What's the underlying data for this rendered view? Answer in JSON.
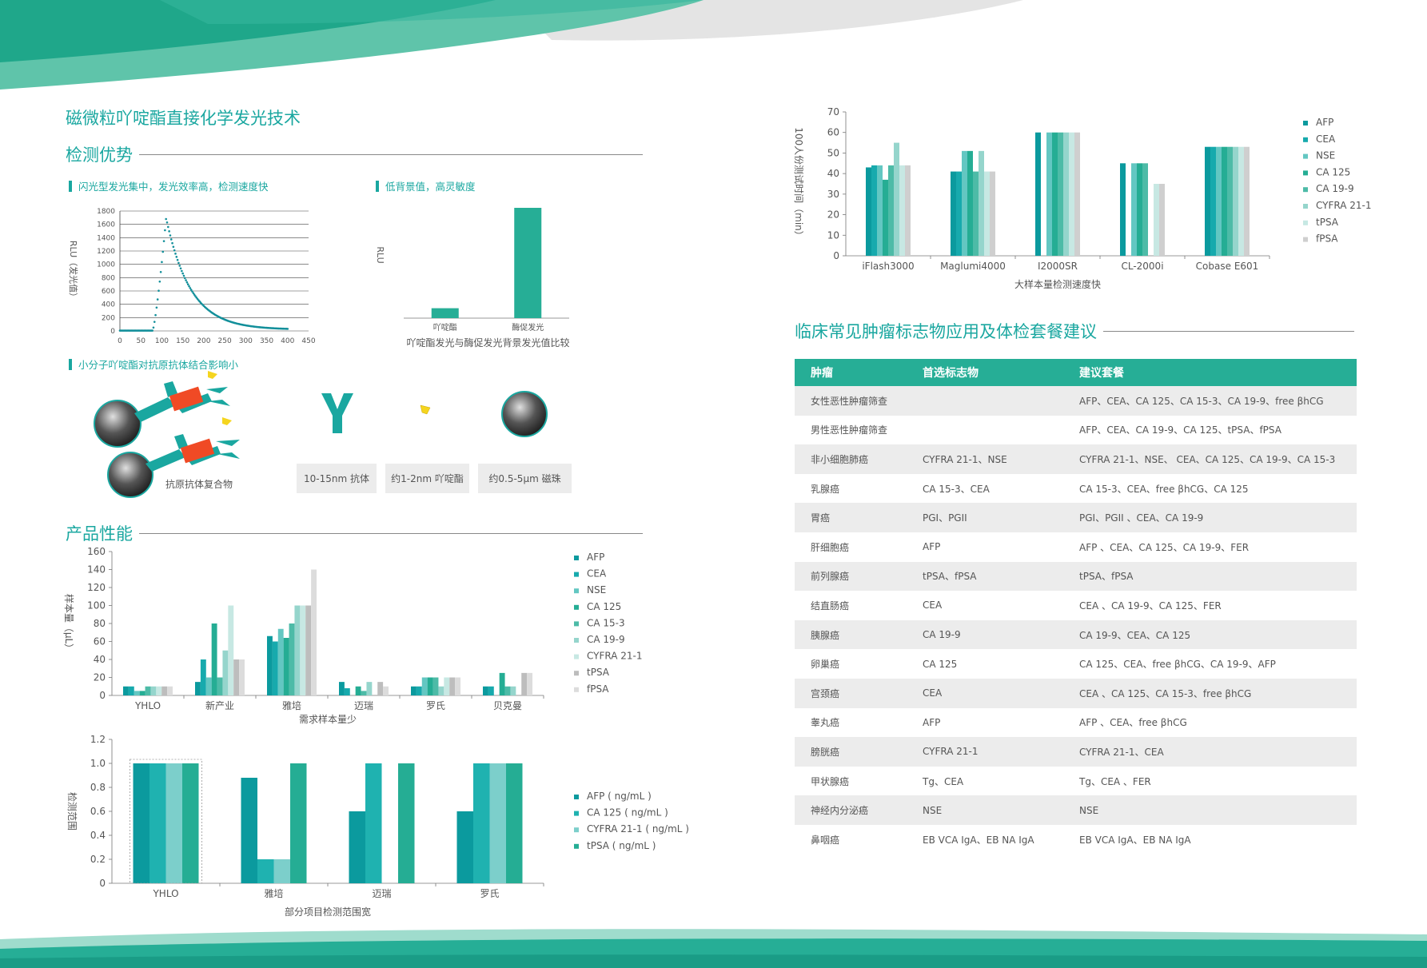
{
  "main_title": "磁微粒吖啶酯直接化学发光技术",
  "section_advantages": "检测优势",
  "sub_flash": "闪光型发光集中，发光效率高，检测速度快",
  "sub_background": "低背景值，高灵敏度",
  "sub_small": "小分子吖啶酯对抗原抗体结合影响小",
  "complex_label": "抗原抗体复合物",
  "info_boxes": [
    "10-15nm 抗体",
    "约1-2nm 吖啶酯",
    "约0.5-5μm 磁珠"
  ],
  "section_performance": "产品性能",
  "section_clinical": "临床常见肿瘤标志物应用及体检套餐建议",
  "colors": {
    "accent": "#1aa7a0",
    "header": "#26ae96"
  },
  "chart_data": [
    {
      "id": "flash",
      "type": "line",
      "title": "",
      "xlabel": "",
      "ylabel": "RLU（发光值）",
      "xlim": [
        0,
        450
      ],
      "ylim": [
        0,
        1800
      ],
      "xticks": [
        "0",
        "50",
        "100",
        "150",
        "200",
        "250",
        "300",
        "350",
        "400",
        "450"
      ],
      "yticks": [
        "0",
        "200",
        "400",
        "600",
        "800",
        "1000",
        "1200",
        "1400",
        "1600",
        "1800"
      ],
      "peak_x": 110,
      "peak_y": 1680,
      "onset_x": 78
    },
    {
      "id": "background",
      "type": "bar",
      "title": "",
      "xlabel": "吖啶酯发光与酶促发光背景发光值比较",
      "ylabel": "RLU",
      "categories": [
        "吖啶酯",
        "酶促发光"
      ],
      "values": [
        9,
        100
      ],
      "ylim": [
        0,
        100
      ]
    },
    {
      "id": "sample",
      "type": "bar",
      "title": "",
      "xlabel": "需求样本量少",
      "ylabel": "样本量（μL）",
      "ylim": [
        0,
        160
      ],
      "yticks": [
        "0",
        "20",
        "40",
        "60",
        "80",
        "100",
        "120",
        "140",
        "160"
      ],
      "categories": [
        "YHLO",
        "新产业",
        "雅培",
        "迈瑞",
        "罗氏",
        "贝克曼"
      ],
      "series": [
        {
          "name": "AFP",
          "color": "#0b9a9e",
          "values": [
            10,
            15,
            66,
            15,
            10,
            10
          ]
        },
        {
          "name": "CEA",
          "color": "#17aaad",
          "values": [
            10,
            40,
            60,
            8,
            10,
            10
          ]
        },
        {
          "name": "NSE",
          "color": "#63c7c2",
          "values": [
            5,
            20,
            74,
            0,
            20,
            0
          ]
        },
        {
          "name": "CA 125",
          "color": "#25ad94",
          "values": [
            5,
            80,
            64,
            10,
            20,
            25
          ]
        },
        {
          "name": "CA 15-3",
          "color": "#4dbba7",
          "values": [
            10,
            20,
            80,
            5,
            20,
            10
          ]
        },
        {
          "name": "CA 19-9",
          "color": "#95d5cc",
          "values": [
            10,
            50,
            100,
            15,
            10,
            10
          ]
        },
        {
          "name": "CYFRA 21-1",
          "color": "#c7e8e3",
          "values": [
            10,
            100,
            100,
            0,
            20,
            0
          ]
        },
        {
          "name": "tPSA",
          "color": "#bdbdbd",
          "values": [
            10,
            40,
            100,
            15,
            20,
            25
          ]
        },
        {
          "name": "fPSA",
          "color": "#dcdcdc",
          "values": [
            10,
            40,
            140,
            10,
            20,
            25
          ]
        }
      ]
    },
    {
      "id": "range",
      "type": "bar",
      "title": "",
      "xlabel": "部分项目检测范围宽",
      "ylabel": "检测范围",
      "ylim": [
        0,
        1.2
      ],
      "yticks": [
        "0",
        "0.2",
        "0.4",
        "0.6",
        "0.8",
        "1.0",
        "1.2"
      ],
      "categories": [
        "YHLO",
        "雅培",
        "迈瑞",
        "罗氏"
      ],
      "series": [
        {
          "name": "AFP ( ng/mL )",
          "color": "#0b9a9e",
          "values": [
            1.0,
            0.88,
            0.6,
            0.6
          ]
        },
        {
          "name": "CA 125 ( ng/mL )",
          "color": "#1fb2b0",
          "values": [
            1.0,
            0.2,
            1.0,
            1.0
          ]
        },
        {
          "name": "CYFRA 21-1 ( ng/mL )",
          "color": "#7ccfcb",
          "values": [
            1.0,
            0.2,
            0,
            1.0
          ]
        },
        {
          "name": "tPSA ( ng/mL )",
          "color": "#25ad94",
          "values": [
            1.0,
            1.0,
            1.0,
            1.0
          ]
        }
      ]
    },
    {
      "id": "speed",
      "type": "bar",
      "title": "",
      "xlabel": "大样本量检测速度快",
      "ylabel": "100人份测试时间（min）",
      "ylim": [
        0,
        70
      ],
      "yticks": [
        "0",
        "10",
        "20",
        "30",
        "40",
        "50",
        "60",
        "70"
      ],
      "categories": [
        "iFlash3000",
        "Maglumi4000",
        "I2000SR",
        "CL-2000i",
        "Cobase E601"
      ],
      "series": [
        {
          "name": "AFP",
          "color": "#0b9a9e",
          "values": [
            43,
            41,
            60,
            45,
            53
          ]
        },
        {
          "name": "CEA",
          "color": "#17aaad",
          "values": [
            44,
            41,
            0,
            0,
            53
          ]
        },
        {
          "name": "NSE",
          "color": "#63c7c2",
          "values": [
            44,
            51,
            60,
            45,
            53
          ]
        },
        {
          "name": "CA 125",
          "color": "#25ad94",
          "values": [
            37,
            51,
            60,
            45,
            53
          ]
        },
        {
          "name": "CA 19-9",
          "color": "#4dbba7",
          "values": [
            44,
            41,
            60,
            45,
            53
          ]
        },
        {
          "name": "CYFRA 21-1",
          "color": "#95d5cc",
          "values": [
            55,
            51,
            60,
            0,
            53
          ]
        },
        {
          "name": "tPSA",
          "color": "#c7e8e3",
          "values": [
            44,
            41,
            60,
            35,
            53
          ]
        },
        {
          "name": "fPSA",
          "color": "#cfcfcf",
          "values": [
            44,
            41,
            60,
            35,
            53
          ]
        }
      ]
    }
  ],
  "table": {
    "headers": [
      "肿瘤",
      "首选标志物",
      "建议套餐"
    ],
    "rows": [
      [
        "女性恶性肿瘤筛查",
        "",
        "AFP、CEA、CA 125、CA 15-3、CA 19-9、free βhCG"
      ],
      [
        "男性恶性肿瘤筛查",
        "",
        "AFP、CEA、CA 19-9、CA 125、tPSA、fPSA"
      ],
      [
        "非小细胞肺癌",
        "CYFRA 21-1、NSE",
        "CYFRA 21-1、NSE、 CEA、CA 125、CA 19-9、CA 15-3"
      ],
      [
        "乳腺癌",
        "CA 15-3、CEA",
        "CA 15-3、CEA、free βhCG、CA 125"
      ],
      [
        "胃癌",
        "PGI、PGII",
        "PGI、PGII 、CEA、CA 19-9"
      ],
      [
        "肝细胞癌",
        "AFP",
        "AFP 、CEA、CA 125、CA 19-9、FER"
      ],
      [
        "前列腺癌",
        "tPSA、fPSA",
        "tPSA、fPSA"
      ],
      [
        "结直肠癌",
        "CEA",
        "CEA 、CA 19-9、CA 125、FER"
      ],
      [
        "胰腺癌",
        "CA 19-9",
        "CA 19-9、CEA、CA 125"
      ],
      [
        "卵巢癌",
        "CA 125",
        "CA 125、CEA、free βhCG、CA 19-9、AFP"
      ],
      [
        "宫颈癌",
        "CEA",
        "CEA 、CA 125、CA 15-3、free βhCG"
      ],
      [
        "睾丸癌",
        "AFP",
        "AFP 、CEA、free βhCG"
      ],
      [
        "膀胱癌",
        "CYFRA 21-1",
        "CYFRA 21-1、CEA"
      ],
      [
        "甲状腺癌",
        "Tg、CEA",
        "Tg、CEA 、FER"
      ],
      [
        "神经内分泌癌",
        "NSE",
        "NSE"
      ],
      [
        "鼻咽癌",
        "EB VCA IgA、EB NA IgA",
        "EB VCA IgA、EB NA IgA"
      ]
    ]
  }
}
